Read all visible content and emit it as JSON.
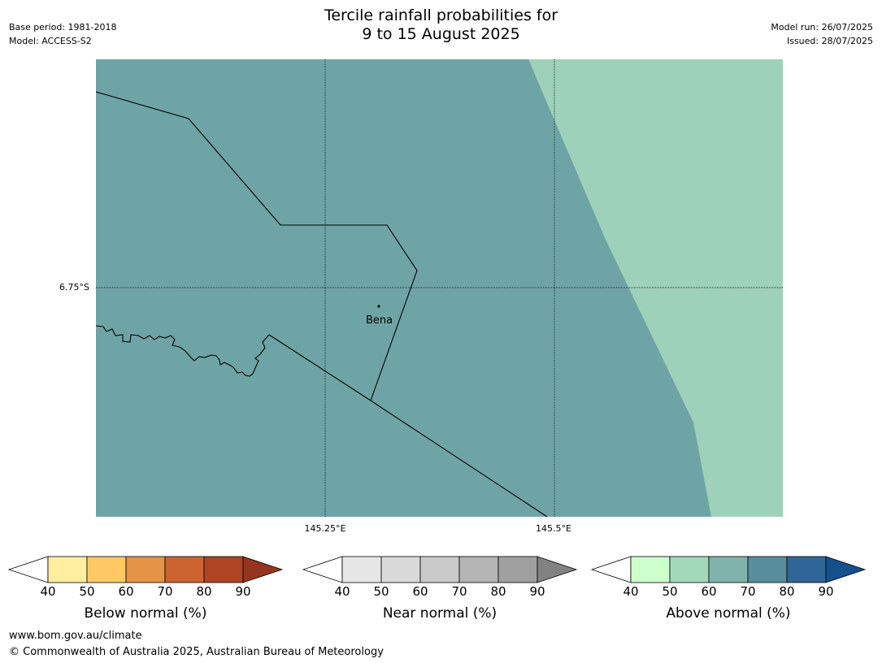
{
  "title": {
    "line1": "Tercile rainfall probabilities for",
    "line2": "9 to 15 August 2025"
  },
  "meta_left": {
    "base_period": "Base period: 1981-2018",
    "model": "Model: ACCESS-S2"
  },
  "meta_right": {
    "model_run": "Model run: 26/07/2025",
    "issued": "Issued: 28/07/2025"
  },
  "map": {
    "lat_label": "6.75°S",
    "lon_labels": [
      "145.25°E",
      "145.5°E"
    ],
    "place": "Bena",
    "colors": {
      "region_above_60_70": "#6fa4a6",
      "region_above_50_60": "#9ed1b9",
      "boundary": "#000000",
      "graticule": "#000000"
    }
  },
  "colorbars": [
    {
      "title": "Below normal (%)",
      "ticks": [
        "40",
        "50",
        "60",
        "70",
        "80",
        "90"
      ],
      "colors": [
        "#ffffff",
        "#ffeda0",
        "#fec965",
        "#e39444",
        "#cc6431",
        "#ad4525",
        "#953520"
      ]
    },
    {
      "title": "Near normal (%)",
      "ticks": [
        "40",
        "50",
        "60",
        "70",
        "80",
        "90"
      ],
      "colors": [
        "#ffffff",
        "#e6e6e6",
        "#d9d9d9",
        "#c9c9c9",
        "#b5b5b5",
        "#a0a0a0",
        "#828282"
      ]
    },
    {
      "title": "Above normal (%)",
      "ticks": [
        "40",
        "50",
        "60",
        "70",
        "80",
        "90"
      ],
      "colors": [
        "#ffffff",
        "#ccffcc",
        "#a3d9bb",
        "#7fb3ac",
        "#578e9c",
        "#306697",
        "#15508c"
      ]
    }
  ],
  "footer": {
    "url": "www.bom.gov.au/climate",
    "copyright": "© Commonwealth of Australia 2025, Australian Bureau of Meteorology"
  }
}
